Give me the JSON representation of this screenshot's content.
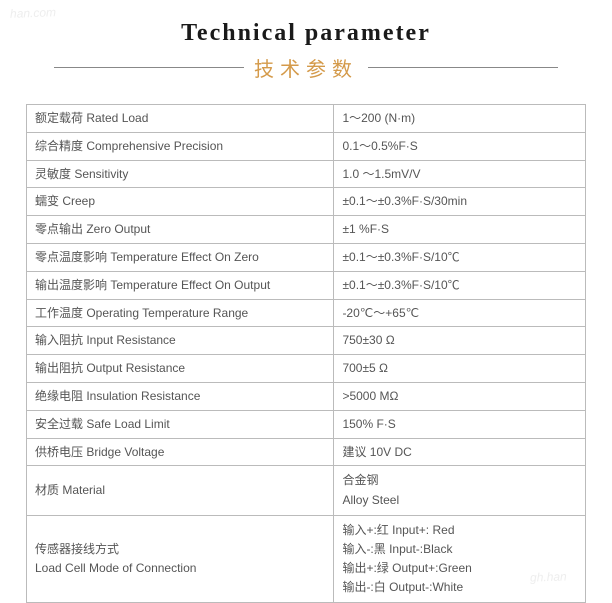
{
  "header": {
    "title_en": "Technical parameter",
    "title_cn": "技术参数"
  },
  "watermark": {
    "tl": "han.com",
    "br": "gh.han"
  },
  "spec_table": {
    "rows": [
      {
        "label": "额定载荷 Rated Load",
        "value": "1～200 (N·m)"
      },
      {
        "label": "综合精度 Comprehensive Precision",
        "value": "0.1～0.5%F·S"
      },
      {
        "label": "灵敏度 Sensitivity",
        "value": "1.0 ～1.5mV/V"
      },
      {
        "label": "蠕变 Creep",
        "value": "±0.1～±0.3%F·S/30min"
      },
      {
        "label": "零点输出 Zero Output",
        "value": "±1 %F·S"
      },
      {
        "label": "零点温度影响 Temperature Effect On Zero",
        "value": "±0.1～±0.3%F·S/10℃"
      },
      {
        "label": "输出温度影响 Temperature Effect On Output",
        "value": "±0.1～±0.3%F·S/10℃"
      },
      {
        "label": "工作温度 Operating Temperature Range",
        "value": "-20℃～+65℃"
      },
      {
        "label": "输入阻抗 Input Resistance",
        "value": "750±30 Ω"
      },
      {
        "label": "输出阻抗 Output Resistance",
        "value": "700±5 Ω"
      },
      {
        "label": "绝缘电阻 Insulation Resistance",
        "value": ">5000 MΩ"
      },
      {
        "label": "安全过载 Safe Load Limit",
        "value": "150% F·S"
      },
      {
        "label": "供桥电压 Bridge Voltage",
        "value": "建议 10V DC"
      }
    ],
    "material": {
      "label": "材质 Material",
      "value_line1": "合金钢",
      "value_line2": "Alloy Steel"
    },
    "connection": {
      "label_line1": "传感器接线方式",
      "label_line2": "Load Cell Mode of Connection",
      "value_line1": "输入+:红 Input+: Red",
      "value_line2": "输入-:黑 Input-:Black",
      "value_line3": "输出+:绿 Output+:Green",
      "value_line4": "输出-:白 Output-:White"
    }
  }
}
